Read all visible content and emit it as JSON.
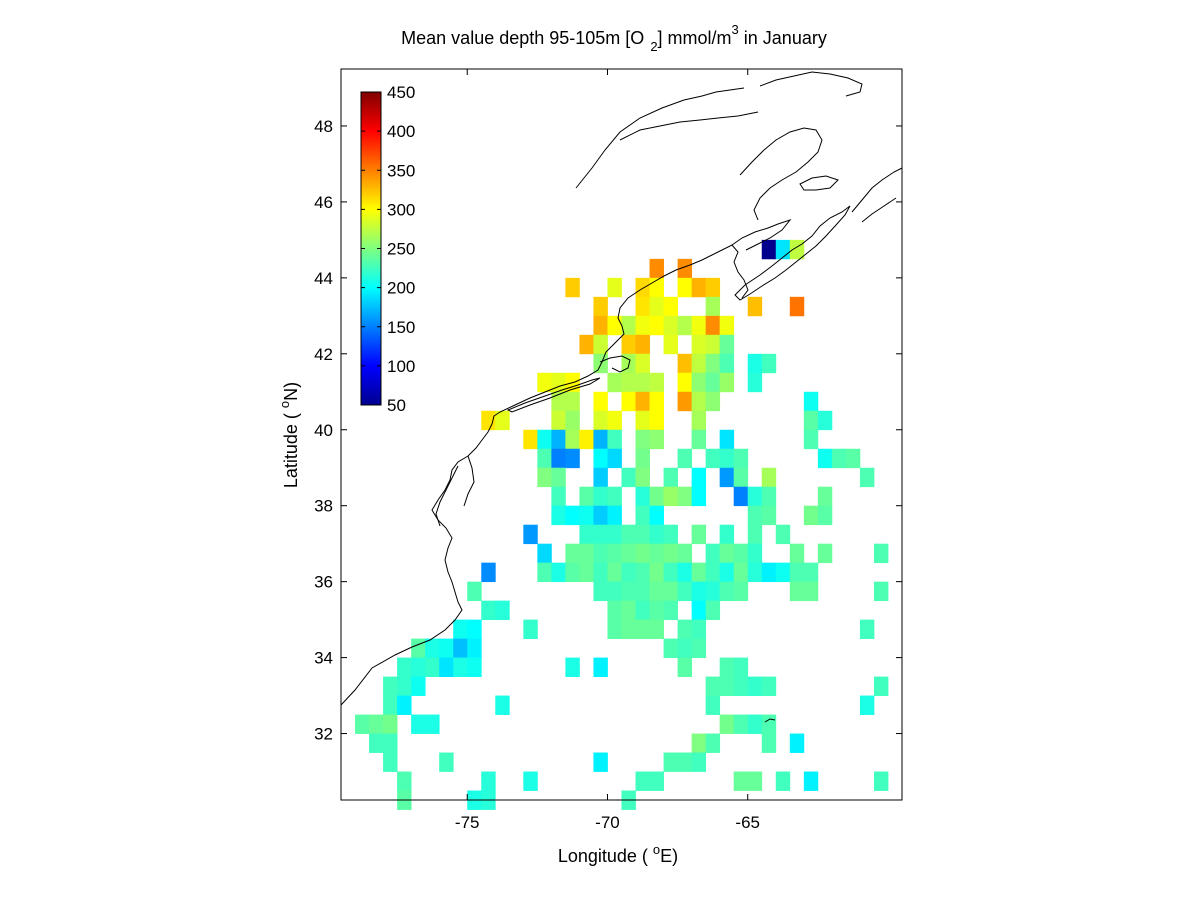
{
  "chart_data": {
    "type": "heatmap",
    "title": {
      "prefix": "Mean value depth 95-105m [O",
      "sub": "2",
      "middle": "] mmol/m",
      "sup": "3",
      "suffix": " in January"
    },
    "xlabel": {
      "prefix": "Longitude ( ",
      "sup": "o",
      "suffix": "E)"
    },
    "ylabel": {
      "prefix": "Latitude ( ",
      "sup": "o",
      "suffix": "N)"
    },
    "xlim": [
      -79.5,
      -59.5
    ],
    "ylim": [
      30.25,
      49.5
    ],
    "xticks": [
      -75,
      -70,
      -65
    ],
    "yticks": [
      32,
      34,
      36,
      38,
      40,
      42,
      44,
      46,
      48
    ],
    "cell_size_deg": 0.5,
    "colormap": "jet",
    "clim": [
      50,
      450
    ],
    "colorbar": {
      "location": "top-left inside",
      "ticks": [
        50,
        100,
        150,
        200,
        250,
        300,
        350,
        400,
        450
      ]
    },
    "cells": [
      [
        -64.25,
        44.75,
        55
      ],
      [
        -63.75,
        44.75,
        190
      ],
      [
        -63.25,
        44.75,
        275
      ],
      [
        -68.25,
        44.25,
        345
      ],
      [
        -67.25,
        44.25,
        345
      ],
      [
        -71.25,
        43.75,
        320
      ],
      [
        -69.75,
        43.75,
        290
      ],
      [
        -68.75,
        43.75,
        315
      ],
      [
        -68.25,
        43.75,
        300
      ],
      [
        -67.25,
        43.75,
        300
      ],
      [
        -66.75,
        43.75,
        330
      ],
      [
        -66.25,
        43.75,
        320
      ],
      [
        -70.25,
        43.25,
        320
      ],
      [
        -68.75,
        43.25,
        310
      ],
      [
        -68.25,
        43.25,
        290
      ],
      [
        -67.75,
        43.25,
        300
      ],
      [
        -66.25,
        43.25,
        265
      ],
      [
        -64.75,
        43.25,
        325
      ],
      [
        -63.25,
        43.25,
        355
      ],
      [
        -70.25,
        42.75,
        330
      ],
      [
        -69.75,
        42.75,
        300
      ],
      [
        -69.25,
        42.75,
        270
      ],
      [
        -68.75,
        42.75,
        295
      ],
      [
        -68.25,
        42.75,
        300
      ],
      [
        -67.75,
        42.75,
        285
      ],
      [
        -67.25,
        42.75,
        270
      ],
      [
        -66.75,
        42.75,
        295
      ],
      [
        -66.25,
        42.75,
        345
      ],
      [
        -65.75,
        42.75,
        295
      ],
      [
        -70.75,
        42.25,
        330
      ],
      [
        -70.25,
        42.25,
        280
      ],
      [
        -69.25,
        42.25,
        320
      ],
      [
        -68.75,
        42.25,
        330
      ],
      [
        -67.75,
        42.25,
        290
      ],
      [
        -66.75,
        42.25,
        285
      ],
      [
        -66.25,
        42.25,
        280
      ],
      [
        -65.75,
        42.25,
        240
      ],
      [
        -70.25,
        41.75,
        255
      ],
      [
        -69.25,
        41.75,
        265
      ],
      [
        -68.75,
        41.75,
        285
      ],
      [
        -67.25,
        41.75,
        325
      ],
      [
        -66.75,
        41.75,
        275
      ],
      [
        -66.25,
        41.75,
        250
      ],
      [
        -65.75,
        41.75,
        230
      ],
      [
        -64.75,
        41.75,
        210
      ],
      [
        -64.25,
        41.75,
        225
      ],
      [
        -72.25,
        41.25,
        295
      ],
      [
        -71.75,
        41.25,
        290
      ],
      [
        -71.25,
        41.25,
        300
      ],
      [
        -69.75,
        41.25,
        265
      ],
      [
        -69.25,
        41.25,
        270
      ],
      [
        -68.75,
        41.25,
        270
      ],
      [
        -68.25,
        41.25,
        275
      ],
      [
        -67.25,
        41.25,
        300
      ],
      [
        -66.75,
        41.25,
        255
      ],
      [
        -66.25,
        41.25,
        240
      ],
      [
        -65.75,
        41.25,
        260
      ],
      [
        -64.75,
        41.25,
        215
      ],
      [
        -71.75,
        40.75,
        270
      ],
      [
        -71.25,
        40.75,
        270
      ],
      [
        -70.25,
        40.75,
        300
      ],
      [
        -69.25,
        40.75,
        300
      ],
      [
        -68.75,
        40.75,
        330
      ],
      [
        -68.25,
        40.75,
        300
      ],
      [
        -67.25,
        40.75,
        340
      ],
      [
        -66.75,
        40.75,
        270
      ],
      [
        -66.25,
        40.75,
        255
      ],
      [
        -62.75,
        40.75,
        205
      ],
      [
        -74.25,
        40.25,
        310
      ],
      [
        -73.75,
        40.25,
        290
      ],
      [
        -71.75,
        40.25,
        280
      ],
      [
        -71.25,
        40.25,
        260
      ],
      [
        -70.25,
        40.25,
        285
      ],
      [
        -69.75,
        40.25,
        295
      ],
      [
        -68.75,
        40.25,
        290
      ],
      [
        -68.25,
        40.25,
        300
      ],
      [
        -66.75,
        40.25,
        265
      ],
      [
        -62.75,
        40.25,
        235
      ],
      [
        -62.25,
        40.25,
        215
      ],
      [
        -72.75,
        39.75,
        310
      ],
      [
        -72.25,
        39.75,
        205
      ],
      [
        -71.75,
        39.75,
        170
      ],
      [
        -71.25,
        39.75,
        265
      ],
      [
        -70.75,
        39.75,
        305
      ],
      [
        -70.25,
        39.75,
        170
      ],
      [
        -69.75,
        39.75,
        225
      ],
      [
        -68.75,
        39.75,
        250
      ],
      [
        -68.25,
        39.75,
        255
      ],
      [
        -66.75,
        39.75,
        240
      ],
      [
        -65.75,
        39.75,
        190
      ],
      [
        -62.75,
        39.75,
        230
      ],
      [
        -72.25,
        39.25,
        230
      ],
      [
        -71.75,
        39.25,
        150
      ],
      [
        -71.25,
        39.25,
        155
      ],
      [
        -70.25,
        39.25,
        200
      ],
      [
        -69.75,
        39.25,
        185
      ],
      [
        -68.75,
        39.25,
        245
      ],
      [
        -67.25,
        39.25,
        230
      ],
      [
        -66.25,
        39.25,
        225
      ],
      [
        -65.75,
        39.25,
        220
      ],
      [
        -65.25,
        39.25,
        230
      ],
      [
        -62.25,
        39.25,
        205
      ],
      [
        -61.75,
        39.25,
        230
      ],
      [
        -61.25,
        39.25,
        235
      ],
      [
        -72.25,
        38.75,
        250
      ],
      [
        -71.75,
        38.75,
        240
      ],
      [
        -70.25,
        38.75,
        180
      ],
      [
        -69.25,
        38.75,
        225
      ],
      [
        -68.75,
        38.75,
        250
      ],
      [
        -67.75,
        38.75,
        230
      ],
      [
        -66.75,
        38.75,
        200
      ],
      [
        -65.75,
        38.75,
        160
      ],
      [
        -65.25,
        38.75,
        235
      ],
      [
        -64.25,
        38.75,
        265
      ],
      [
        -60.75,
        38.75,
        230
      ],
      [
        -71.75,
        38.25,
        225
      ],
      [
        -70.75,
        38.25,
        235
      ],
      [
        -70.25,
        38.25,
        220
      ],
      [
        -69.75,
        38.25,
        225
      ],
      [
        -68.75,
        38.25,
        215
      ],
      [
        -68.25,
        38.25,
        245
      ],
      [
        -67.75,
        38.25,
        260
      ],
      [
        -67.25,
        38.25,
        250
      ],
      [
        -66.75,
        38.25,
        200
      ],
      [
        -65.25,
        38.25,
        150
      ],
      [
        -64.75,
        38.25,
        215
      ],
      [
        -64.25,
        38.25,
        230
      ],
      [
        -62.25,
        38.25,
        240
      ],
      [
        -71.75,
        37.75,
        210
      ],
      [
        -71.25,
        37.75,
        200
      ],
      [
        -70.75,
        37.75,
        205
      ],
      [
        -70.25,
        37.75,
        180
      ],
      [
        -69.75,
        37.75,
        195
      ],
      [
        -68.75,
        37.75,
        225
      ],
      [
        -68.25,
        37.75,
        200
      ],
      [
        -64.75,
        37.75,
        230
      ],
      [
        -64.25,
        37.75,
        235
      ],
      [
        -62.75,
        37.75,
        245
      ],
      [
        -62.25,
        37.75,
        235
      ],
      [
        -72.75,
        37.25,
        160
      ],
      [
        -70.75,
        37.25,
        220
      ],
      [
        -70.25,
        37.25,
        220
      ],
      [
        -69.75,
        37.25,
        220
      ],
      [
        -69.25,
        37.25,
        230
      ],
      [
        -68.75,
        37.25,
        230
      ],
      [
        -68.25,
        37.25,
        220
      ],
      [
        -67.75,
        37.25,
        225
      ],
      [
        -66.75,
        37.25,
        240
      ],
      [
        -65.75,
        37.25,
        220
      ],
      [
        -64.75,
        37.25,
        230
      ],
      [
        -63.75,
        37.25,
        230
      ],
      [
        -72.25,
        36.75,
        185
      ],
      [
        -71.25,
        36.75,
        240
      ],
      [
        -70.75,
        36.75,
        240
      ],
      [
        -70.25,
        36.75,
        230
      ],
      [
        -69.75,
        36.75,
        235
      ],
      [
        -69.25,
        36.75,
        240
      ],
      [
        -68.75,
        36.75,
        245
      ],
      [
        -68.25,
        36.75,
        240
      ],
      [
        -67.75,
        36.75,
        245
      ],
      [
        -67.25,
        36.75,
        240
      ],
      [
        -66.25,
        36.75,
        225
      ],
      [
        -65.75,
        36.75,
        240
      ],
      [
        -65.25,
        36.75,
        235
      ],
      [
        -64.75,
        36.75,
        220
      ],
      [
        -63.25,
        36.75,
        240
      ],
      [
        -62.25,
        36.75,
        240
      ],
      [
        -60.25,
        36.75,
        230
      ],
      [
        -74.25,
        36.25,
        155
      ],
      [
        -72.25,
        36.25,
        230
      ],
      [
        -71.75,
        36.25,
        210
      ],
      [
        -71.25,
        36.25,
        235
      ],
      [
        -70.75,
        36.25,
        240
      ],
      [
        -70.25,
        36.25,
        225
      ],
      [
        -69.75,
        36.25,
        240
      ],
      [
        -69.25,
        36.25,
        225
      ],
      [
        -68.75,
        36.25,
        230
      ],
      [
        -68.25,
        36.25,
        245
      ],
      [
        -67.75,
        36.25,
        225
      ],
      [
        -67.25,
        36.25,
        210
      ],
      [
        -66.75,
        36.25,
        240
      ],
      [
        -66.25,
        36.25,
        225
      ],
      [
        -65.75,
        36.25,
        210
      ],
      [
        -65.25,
        36.25,
        240
      ],
      [
        -64.75,
        36.25,
        215
      ],
      [
        -64.25,
        36.25,
        195
      ],
      [
        -63.75,
        36.25,
        205
      ],
      [
        -63.25,
        36.25,
        230
      ],
      [
        -62.75,
        36.25,
        230
      ],
      [
        -74.75,
        35.75,
        230
      ],
      [
        -70.25,
        35.75,
        225
      ],
      [
        -69.75,
        35.75,
        225
      ],
      [
        -69.25,
        35.75,
        230
      ],
      [
        -68.75,
        35.75,
        230
      ],
      [
        -68.25,
        35.75,
        240
      ],
      [
        -67.75,
        35.75,
        240
      ],
      [
        -67.25,
        35.75,
        225
      ],
      [
        -66.75,
        35.75,
        210
      ],
      [
        -66.25,
        35.75,
        215
      ],
      [
        -65.75,
        35.75,
        230
      ],
      [
        -65.25,
        35.75,
        235
      ],
      [
        -63.25,
        35.75,
        240
      ],
      [
        -62.75,
        35.75,
        240
      ],
      [
        -60.25,
        35.75,
        230
      ],
      [
        -74.25,
        35.25,
        220
      ],
      [
        -73.75,
        35.25,
        215
      ],
      [
        -69.75,
        35.25,
        235
      ],
      [
        -69.25,
        35.25,
        240
      ],
      [
        -68.75,
        35.25,
        225
      ],
      [
        -68.25,
        35.25,
        235
      ],
      [
        -67.75,
        35.25,
        230
      ],
      [
        -66.75,
        35.25,
        200
      ],
      [
        -66.25,
        35.25,
        230
      ],
      [
        -75.25,
        34.75,
        205
      ],
      [
        -74.75,
        34.75,
        200
      ],
      [
        -72.75,
        34.75,
        220
      ],
      [
        -69.75,
        34.75,
        235
      ],
      [
        -69.25,
        34.75,
        240
      ],
      [
        -68.75,
        34.75,
        240
      ],
      [
        -68.25,
        34.75,
        240
      ],
      [
        -67.25,
        34.75,
        230
      ],
      [
        -66.75,
        34.75,
        225
      ],
      [
        -60.75,
        34.75,
        225
      ],
      [
        -76.75,
        34.25,
        235
      ],
      [
        -76.25,
        34.25,
        210
      ],
      [
        -75.75,
        34.25,
        205
      ],
      [
        -75.25,
        34.25,
        175
      ],
      [
        -74.75,
        34.25,
        195
      ],
      [
        -67.75,
        34.25,
        230
      ],
      [
        -67.25,
        34.25,
        225
      ],
      [
        -66.75,
        34.25,
        230
      ],
      [
        -77.25,
        33.75,
        220
      ],
      [
        -76.75,
        33.75,
        215
      ],
      [
        -76.25,
        33.75,
        220
      ],
      [
        -75.75,
        33.75,
        190
      ],
      [
        -75.25,
        33.75,
        210
      ],
      [
        -74.75,
        33.75,
        205
      ],
      [
        -71.25,
        33.75,
        210
      ],
      [
        -70.25,
        33.75,
        195
      ],
      [
        -67.25,
        33.75,
        235
      ],
      [
        -65.75,
        33.75,
        230
      ],
      [
        -65.25,
        33.75,
        225
      ],
      [
        -77.75,
        33.25,
        225
      ],
      [
        -77.25,
        33.25,
        220
      ],
      [
        -76.75,
        33.25,
        205
      ],
      [
        -66.25,
        33.25,
        230
      ],
      [
        -65.75,
        33.25,
        230
      ],
      [
        -65.25,
        33.25,
        225
      ],
      [
        -64.75,
        33.25,
        220
      ],
      [
        -64.25,
        33.25,
        225
      ],
      [
        -60.25,
        33.25,
        225
      ],
      [
        -77.75,
        32.75,
        225
      ],
      [
        -77.25,
        32.75,
        195
      ],
      [
        -73.75,
        32.75,
        210
      ],
      [
        -66.25,
        32.75,
        225
      ],
      [
        -60.75,
        32.75,
        210
      ],
      [
        -78.75,
        32.25,
        235
      ],
      [
        -78.25,
        32.25,
        240
      ],
      [
        -77.75,
        32.25,
        245
      ],
      [
        -76.75,
        32.25,
        210
      ],
      [
        -76.25,
        32.25,
        210
      ],
      [
        -65.75,
        32.25,
        245
      ],
      [
        -65.25,
        32.25,
        230
      ],
      [
        -64.75,
        32.25,
        220
      ],
      [
        -64.25,
        32.25,
        230
      ],
      [
        -78.25,
        31.75,
        225
      ],
      [
        -77.75,
        31.75,
        225
      ],
      [
        -66.75,
        31.75,
        250
      ],
      [
        -66.25,
        31.75,
        230
      ],
      [
        -64.25,
        31.75,
        230
      ],
      [
        -63.25,
        31.75,
        195
      ],
      [
        -77.75,
        31.25,
        225
      ],
      [
        -75.75,
        31.25,
        225
      ],
      [
        -70.25,
        31.25,
        195
      ],
      [
        -67.75,
        31.25,
        230
      ],
      [
        -67.25,
        31.25,
        230
      ],
      [
        -66.75,
        31.25,
        225
      ],
      [
        -77.25,
        30.75,
        230
      ],
      [
        -74.25,
        30.75,
        215
      ],
      [
        -72.75,
        30.75,
        210
      ],
      [
        -68.75,
        30.75,
        225
      ],
      [
        -68.25,
        30.75,
        225
      ],
      [
        -65.25,
        30.75,
        240
      ],
      [
        -64.75,
        30.75,
        240
      ],
      [
        -63.75,
        30.75,
        225
      ],
      [
        -62.75,
        30.75,
        195
      ],
      [
        -60.25,
        30.75,
        225
      ],
      [
        -77.25,
        30.25,
        235
      ],
      [
        -74.75,
        30.25,
        210
      ],
      [
        -74.25,
        30.25,
        215
      ],
      [
        -69.25,
        30.25,
        225
      ]
    ]
  }
}
